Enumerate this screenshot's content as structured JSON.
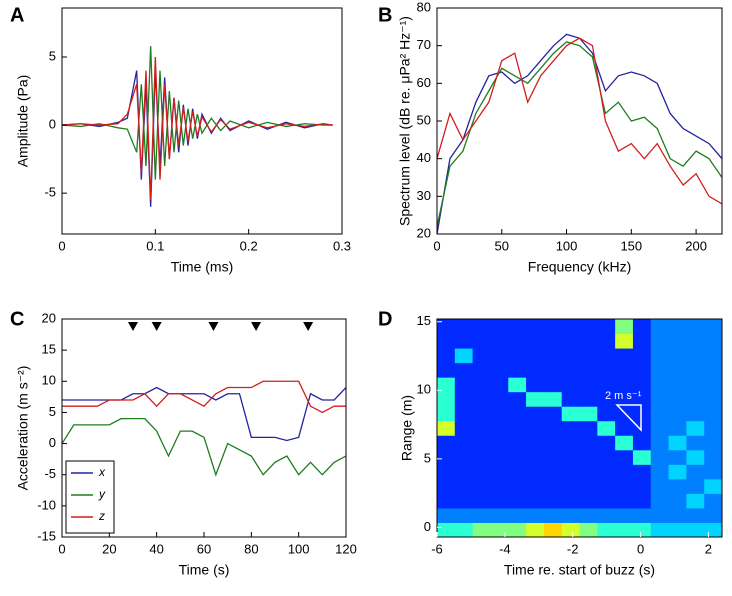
{
  "chart_data": [
    {
      "type": "line",
      "panel_label": "A",
      "xlabel": "Time (ms)",
      "ylabel": "Amplitude (Pa)",
      "x": [
        0,
        0.02,
        0.04,
        0.06,
        0.07,
        0.08,
        0.085,
        0.09,
        0.095,
        0.1,
        0.105,
        0.11,
        0.115,
        0.12,
        0.125,
        0.13,
        0.135,
        0.14,
        0.145,
        0.15,
        0.16,
        0.17,
        0.18,
        0.2,
        0.22,
        0.24,
        0.26,
        0.28,
        0.29
      ],
      "series": [
        {
          "color": "#2323a0",
          "values": [
            0,
            0.1,
            -0.1,
            0.2,
            0.5,
            4,
            -4,
            3,
            -6,
            4,
            -3,
            3.5,
            -2.5,
            2,
            -2,
            1.5,
            -1.5,
            1.2,
            -1,
            0.8,
            -0.6,
            0.5,
            -0.4,
            0.3,
            -0.3,
            0.2,
            -0.2,
            0.1,
            0
          ]
        },
        {
          "color": "#1e7d1e",
          "values": [
            0,
            -0.1,
            0.1,
            -0.2,
            -0.3,
            -2,
            3,
            -3,
            5.8,
            -4,
            4,
            -3,
            2.5,
            -2,
            1.8,
            -1.5,
            1.2,
            -1,
            0.8,
            -0.6,
            0.5,
            -0.4,
            0.3,
            -0.2,
            0.2,
            -0.1,
            0.1,
            0,
            0
          ]
        },
        {
          "color": "#d21e1e",
          "values": [
            0,
            0.1,
            0,
            0.1,
            0.8,
            3,
            -3.5,
            4,
            -5.5,
            5,
            -4,
            3,
            -2.5,
            2,
            -1.5,
            1.3,
            -1.2,
            1,
            -0.8,
            0.6,
            -0.5,
            0.4,
            -0.3,
            0.2,
            -0.2,
            0.1,
            -0.1,
            0.1,
            0
          ]
        }
      ],
      "xlim": [
        0,
        0.3
      ],
      "xticks": [
        0,
        0.1,
        0.2,
        0.3
      ],
      "ylim": [
        -8,
        8.6
      ],
      "yticks": [
        -5,
        0,
        5
      ]
    },
    {
      "type": "line",
      "panel_label": "B",
      "xlabel": "Frequency (kHz)",
      "ylabel": "Spectrum level (dB re. μPa² Hz⁻¹)",
      "x": [
        0,
        10,
        20,
        30,
        40,
        50,
        60,
        70,
        80,
        90,
        100,
        110,
        120,
        130,
        140,
        150,
        160,
        170,
        180,
        190,
        200,
        210,
        220
      ],
      "series": [
        {
          "color": "#2323a0",
          "values": [
            20,
            40,
            45,
            55,
            62,
            63,
            60,
            62,
            66,
            70,
            73,
            72,
            68,
            58,
            62,
            63,
            62,
            60,
            52,
            48,
            46,
            44,
            40
          ]
        },
        {
          "color": "#1e7d1e",
          "values": [
            22,
            38,
            42,
            52,
            58,
            64,
            62,
            60,
            64,
            68,
            71,
            70,
            67,
            52,
            55,
            50,
            51,
            48,
            40,
            38,
            42,
            40,
            35
          ]
        },
        {
          "color": "#d21e1e",
          "values": [
            40,
            52,
            45,
            50,
            55,
            66,
            68,
            55,
            62,
            66,
            70,
            72,
            70,
            50,
            42,
            44,
            40,
            44,
            38,
            33,
            36,
            30,
            28
          ]
        }
      ],
      "xlim": [
        0,
        220
      ],
      "xticks": [
        0,
        50,
        100,
        150,
        200
      ],
      "ylim": [
        20,
        80
      ],
      "yticks": [
        20,
        30,
        40,
        50,
        60,
        70,
        80
      ]
    },
    {
      "type": "line",
      "panel_label": "C",
      "xlabel": "Time (s)",
      "ylabel": "Acceleration (m s⁻²)",
      "x": [
        0,
        5,
        10,
        15,
        20,
        25,
        30,
        35,
        40,
        45,
        50,
        55,
        60,
        65,
        70,
        75,
        80,
        85,
        90,
        95,
        100,
        105,
        110,
        115,
        120
      ],
      "series": [
        {
          "name": "x",
          "color": "#2323a0",
          "values": [
            7,
            7,
            7,
            7,
            7,
            7,
            8,
            8,
            9,
            8,
            8,
            8,
            8,
            7,
            8,
            8,
            1,
            1,
            1,
            0.5,
            1,
            8,
            7,
            7,
            9
          ]
        },
        {
          "name": "y",
          "color": "#1e7d1e",
          "values": [
            0,
            3,
            3,
            3,
            3,
            4,
            4,
            4,
            2,
            -2,
            2,
            2,
            1,
            -5,
            0,
            -1,
            -2,
            -5,
            -3,
            -2,
            -5,
            -3,
            -5,
            -3,
            -2
          ]
        },
        {
          "name": "z",
          "color": "#d21e1e",
          "values": [
            6,
            6,
            6,
            6,
            7,
            7,
            7,
            8,
            6,
            8,
            8,
            7,
            6,
            8,
            9,
            9,
            9,
            10,
            10,
            10,
            10,
            6,
            5,
            6,
            6
          ]
        }
      ],
      "event_markers": [
        30,
        40,
        64,
        82,
        104
      ],
      "legend": "lower left",
      "xlim": [
        0,
        120
      ],
      "xticks": [
        0,
        20,
        40,
        60,
        80,
        100,
        120
      ],
      "ylim": [
        -15,
        20
      ],
      "yticks": [
        -15,
        -10,
        -5,
        0,
        5,
        10,
        15,
        20
      ]
    },
    {
      "type": "heatmap",
      "panel_label": "D",
      "xlabel": "Time re. start of buzz (s)",
      "ylabel": "Range (m)",
      "annotation": "2 m s⁻¹",
      "z": [
        [
          5,
          5,
          6,
          6,
          6,
          7,
          8,
          7,
          6,
          5,
          5,
          5,
          4,
          4,
          4,
          4
        ],
        [
          3,
          3,
          3,
          3,
          3,
          3,
          3,
          3,
          3,
          3,
          3,
          3,
          3,
          3,
          3,
          3
        ],
        [
          2,
          2,
          2,
          2,
          2,
          2,
          2,
          2,
          2,
          2,
          2,
          2,
          3,
          3,
          4,
          3
        ],
        [
          2,
          2,
          2,
          2,
          2,
          2,
          2,
          2,
          2,
          2,
          2,
          2,
          3,
          3,
          3,
          4
        ],
        [
          2,
          2,
          2,
          2,
          2,
          2,
          2,
          2,
          2,
          2,
          2,
          2,
          3,
          4,
          3,
          3
        ],
        [
          2,
          2,
          2,
          2,
          2,
          2,
          2,
          2,
          2,
          2,
          2,
          5,
          3,
          3,
          4,
          3
        ],
        [
          2,
          2,
          2,
          2,
          2,
          2,
          2,
          2,
          2,
          2,
          5,
          2,
          3,
          4,
          3,
          3
        ],
        [
          7,
          2,
          2,
          2,
          2,
          2,
          2,
          2,
          2,
          5,
          2,
          2,
          3,
          3,
          4,
          3
        ],
        [
          5,
          2,
          2,
          2,
          2,
          2,
          2,
          5,
          5,
          2,
          2,
          2,
          3,
          3,
          3,
          3
        ],
        [
          5,
          2,
          2,
          2,
          2,
          5,
          5,
          2,
          2,
          2,
          2,
          2,
          3,
          3,
          3,
          3
        ],
        [
          5,
          2,
          2,
          2,
          5,
          2,
          2,
          2,
          2,
          2,
          2,
          2,
          3,
          3,
          3,
          3
        ],
        [
          2,
          2,
          2,
          2,
          2,
          2,
          2,
          2,
          2,
          2,
          2,
          2,
          3,
          3,
          3,
          3
        ],
        [
          2,
          4,
          2,
          2,
          2,
          2,
          2,
          2,
          2,
          2,
          2,
          2,
          3,
          3,
          3,
          3
        ],
        [
          2,
          2,
          2,
          2,
          2,
          2,
          2,
          2,
          2,
          2,
          7,
          2,
          3,
          3,
          3,
          3
        ],
        [
          2,
          2,
          2,
          2,
          2,
          2,
          2,
          2,
          2,
          2,
          6,
          2,
          3,
          3,
          3,
          3
        ]
      ],
      "xlim": [
        -6,
        2.4
      ],
      "xticks": [
        -6,
        -4,
        -2,
        0,
        2
      ],
      "ylim": [
        -0.7,
        15.2
      ],
      "yticks": [
        0,
        5,
        10,
        15
      ]
    }
  ]
}
